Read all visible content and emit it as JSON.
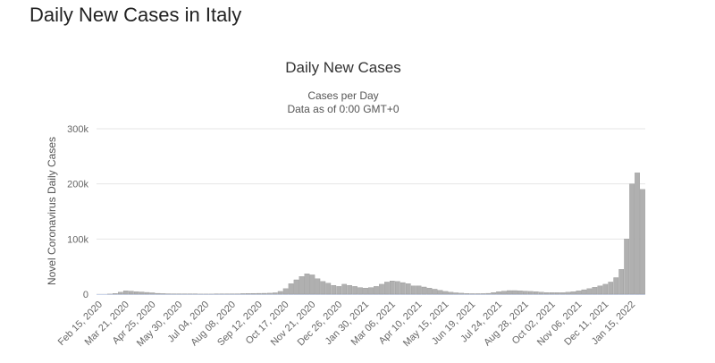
{
  "header": {
    "title": "Daily New Cases in Italy"
  },
  "chart_data": {
    "type": "bar",
    "title": "Daily New Cases",
    "subtitle": "Cases per Day",
    "subtitle2": "Data as of 0:00 GMT+0",
    "y_label": "Novel Coronavirus Daily Cases",
    "color": "#b0b0b0",
    "grid": true,
    "ylim": [
      0,
      300000
    ],
    "yticks": [
      0,
      {
        "value": 100000,
        "label": "100k"
      },
      {
        "value": 200000,
        "label": "200k"
      },
      {
        "value": 300000,
        "label": "300k"
      }
    ],
    "categories": [
      "Feb 15, 2020",
      null,
      null,
      null,
      null,
      "Mar 21, 2020",
      null,
      null,
      null,
      null,
      "Apr 25, 2020",
      null,
      null,
      null,
      null,
      "May 30, 2020",
      null,
      null,
      null,
      null,
      "Jul 04, 2020",
      null,
      null,
      null,
      null,
      "Aug 08, 2020",
      null,
      null,
      null,
      null,
      "Sep 12, 2020",
      null,
      null,
      null,
      null,
      "Oct 17, 2020",
      null,
      null,
      null,
      null,
      "Nov 21, 2020",
      null,
      null,
      null,
      null,
      "Dec 26, 2020",
      null,
      null,
      null,
      null,
      "Jan 30, 2021",
      null,
      null,
      null,
      null,
      "Mar 06, 2021",
      null,
      null,
      null,
      null,
      "Apr 10, 2021",
      null,
      null,
      null,
      null,
      "May 15, 2021",
      null,
      null,
      null,
      null,
      "Jun 19, 2021",
      null,
      null,
      null,
      null,
      "Jul 24, 2021",
      null,
      null,
      null,
      null,
      "Aug 28, 2021",
      null,
      null,
      null,
      null,
      "Oct 02, 2021",
      null,
      null,
      null,
      null,
      "Nov 06, 2021",
      null,
      null,
      null,
      null,
      "Dec 11, 2021",
      null,
      null,
      null,
      null,
      "Jan 15, 2022",
      null,
      null
    ],
    "values": [
      0,
      0,
      200,
      1200,
      3500,
      6000,
      5500,
      4500,
      4000,
      3200,
      2500,
      1500,
      1000,
      700,
      500,
      400,
      250,
      300,
      250,
      200,
      200,
      200,
      250,
      300,
      350,
      450,
      600,
      1000,
      1200,
      1400,
      1500,
      1600,
      1800,
      2500,
      5000,
      10000,
      19000,
      26000,
      32000,
      37000,
      35000,
      28000,
      23000,
      20000,
      16000,
      14000,
      18000,
      16000,
      14000,
      12000,
      11000,
      12000,
      14000,
      18000,
      22000,
      24000,
      23000,
      21000,
      19000,
      15000,
      15000,
      13000,
      11000,
      9000,
      7000,
      5000,
      3500,
      2500,
      1800,
      1200,
      900,
      900,
      1000,
      1500,
      3000,
      4500,
      5500,
      6500,
      6500,
      6000,
      5500,
      5000,
      4500,
      3500,
      3000,
      3000,
      2800,
      2800,
      3500,
      4500,
      6000,
      8000,
      10000,
      12500,
      15000,
      18000,
      22000,
      30000,
      45000,
      100000,
      200000,
      220000,
      190000
    ]
  }
}
